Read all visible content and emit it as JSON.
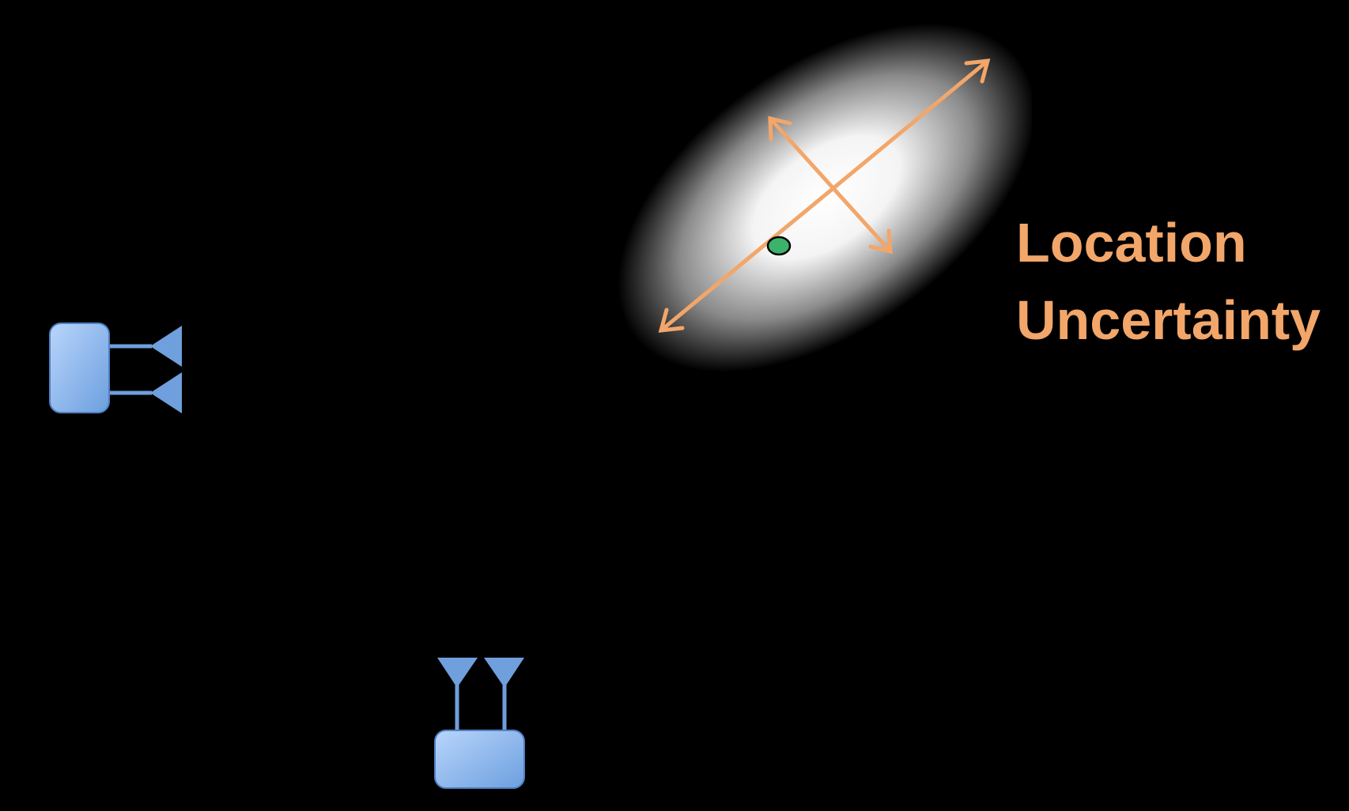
{
  "caption": {
    "line1": "Location",
    "line2": "Uncertainty"
  },
  "colors": {
    "background": "#000000",
    "uncertainty_text": "#F2A66A",
    "arrow": "#F2A66A",
    "device_fill_light": "#B9D5FB",
    "device_fill_dark": "#6C9FDF",
    "device_stroke": "#4F7FC0",
    "antenna": "#6F9FDC",
    "estimate_point": "#3BB36A"
  },
  "icons": {
    "left_device": "antenna-device-icon",
    "bottom_device": "antenna-device-icon",
    "estimate": "location-estimate-icon",
    "uncertainty_region": "gaussian-uncertainty-ellipse"
  }
}
